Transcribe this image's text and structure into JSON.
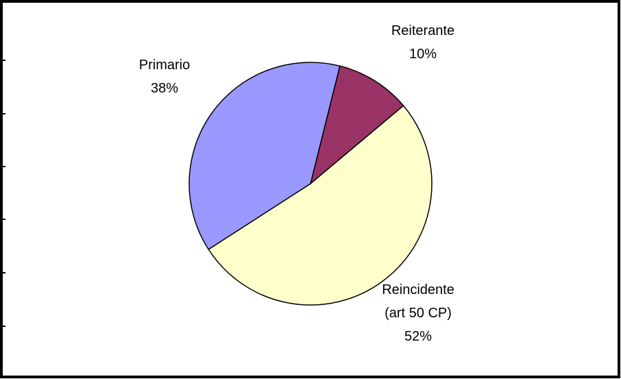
{
  "chart_data": {
    "type": "pie",
    "categories": [
      "Reiterante",
      "Reincidente (art 50 CP)",
      "Primario"
    ],
    "values": [
      10,
      52,
      38
    ],
    "value_labels": [
      "10%",
      "52%",
      "38%"
    ],
    "colors": [
      "#993366",
      "#ffffcc",
      "#9999ff"
    ]
  }
}
